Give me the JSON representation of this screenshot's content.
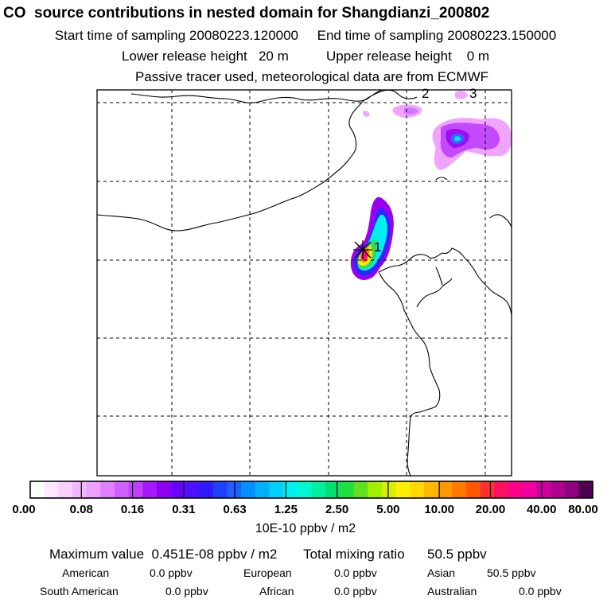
{
  "header": {
    "title": "CO  source contributions in nested domain for Shangdianzi_200802",
    "start_label": "Start time of sampling",
    "start_value": "20080223.120000",
    "end_label": "End time of sampling",
    "end_value": "20080223.150000",
    "lower_label": "Lower release height",
    "lower_value": "20 m",
    "upper_label": "Upper release height",
    "upper_value": "0 m",
    "note": "Passive tracer used, meteorological data are from ECMWF"
  },
  "map": {
    "markers": [
      {
        "label": "1"
      },
      {
        "label": "2"
      },
      {
        "label": "3"
      }
    ]
  },
  "colorbar": {
    "ticks": [
      "0.00",
      "0.08",
      "0.16",
      "0.31",
      "0.63",
      "1.25",
      "2.50",
      "5.00",
      "10.00",
      "20.00",
      "40.00",
      "80.00"
    ],
    "units": "10E-10 ppbv / m2"
  },
  "summary": {
    "max_label": "Maximum value",
    "max_value": "0.451E-08 ppbv / m2",
    "total_label": "Total mixing ratio",
    "total_value": "50.5 ppbv",
    "regions": [
      {
        "name": "American",
        "value": "0.0 ppbv"
      },
      {
        "name": "European",
        "value": "0.0 ppbv"
      },
      {
        "name": "Asian",
        "value": "50.5 ppbv"
      },
      {
        "name": "South American",
        "value": "0.0 ppbv"
      },
      {
        "name": "African",
        "value": "0.0 ppbv"
      },
      {
        "name": "Australian",
        "value": "0.0 ppbv"
      }
    ]
  }
}
